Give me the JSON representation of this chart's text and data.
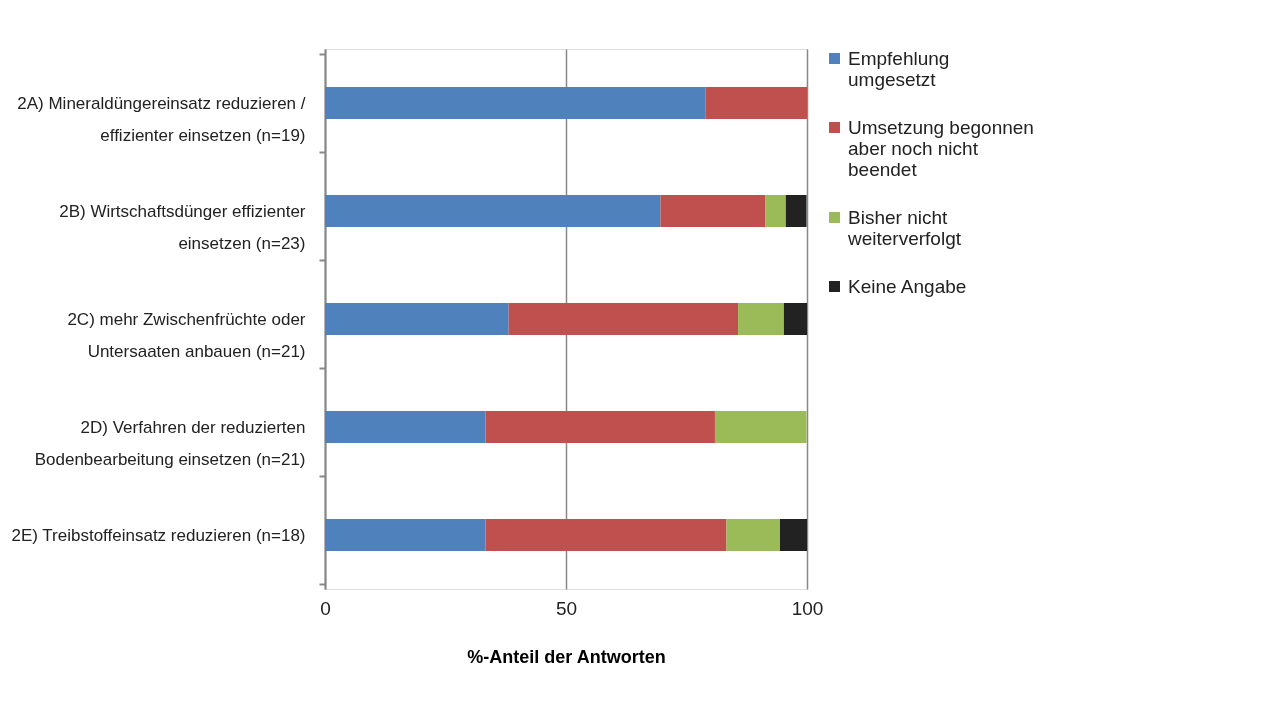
{
  "chart_data": {
    "type": "bar",
    "orientation": "horizontal",
    "stacked": true,
    "xlabel": "%-Anteil der Antworten",
    "categories": [
      "2A) Mineraldüngereinsatz reduzieren / effizienter einsetzen (n=19)",
      "2B) Wirtschaftsdünger effizienter einsetzen (n=23)",
      "2C) mehr Zwischenfrüchte oder Untersaaten anbauen (n=21)",
      "2D) Verfahren der reduzierten Bodenbearbeitung einsetzen (n=21)",
      "2E) Treibstoffeinsatz reduzieren (n=18)"
    ],
    "series": [
      {
        "name": "Empfehlung umgesetzt",
        "color": "#4f81bd",
        "values": [
          78.9,
          69.6,
          38.1,
          33.3,
          33.3
        ]
      },
      {
        "name": "Umsetzung begonnen aber noch nicht beendet",
        "color": "#c0504d",
        "values": [
          21.1,
          21.7,
          47.6,
          47.6,
          50.0
        ]
      },
      {
        "name": "Bisher nicht weiterverfolgt",
        "color": "#9bbb59",
        "values": [
          null,
          4.3,
          9.5,
          19.0,
          11.1
        ]
      },
      {
        "name": "Keine Angabe",
        "color": "#222222",
        "values": [
          null,
          4.3,
          4.8,
          null,
          5.6
        ]
      }
    ],
    "xlim": [
      0,
      100
    ],
    "xticks": [
      0,
      50,
      100
    ],
    "grid": "x",
    "legend": "right"
  }
}
